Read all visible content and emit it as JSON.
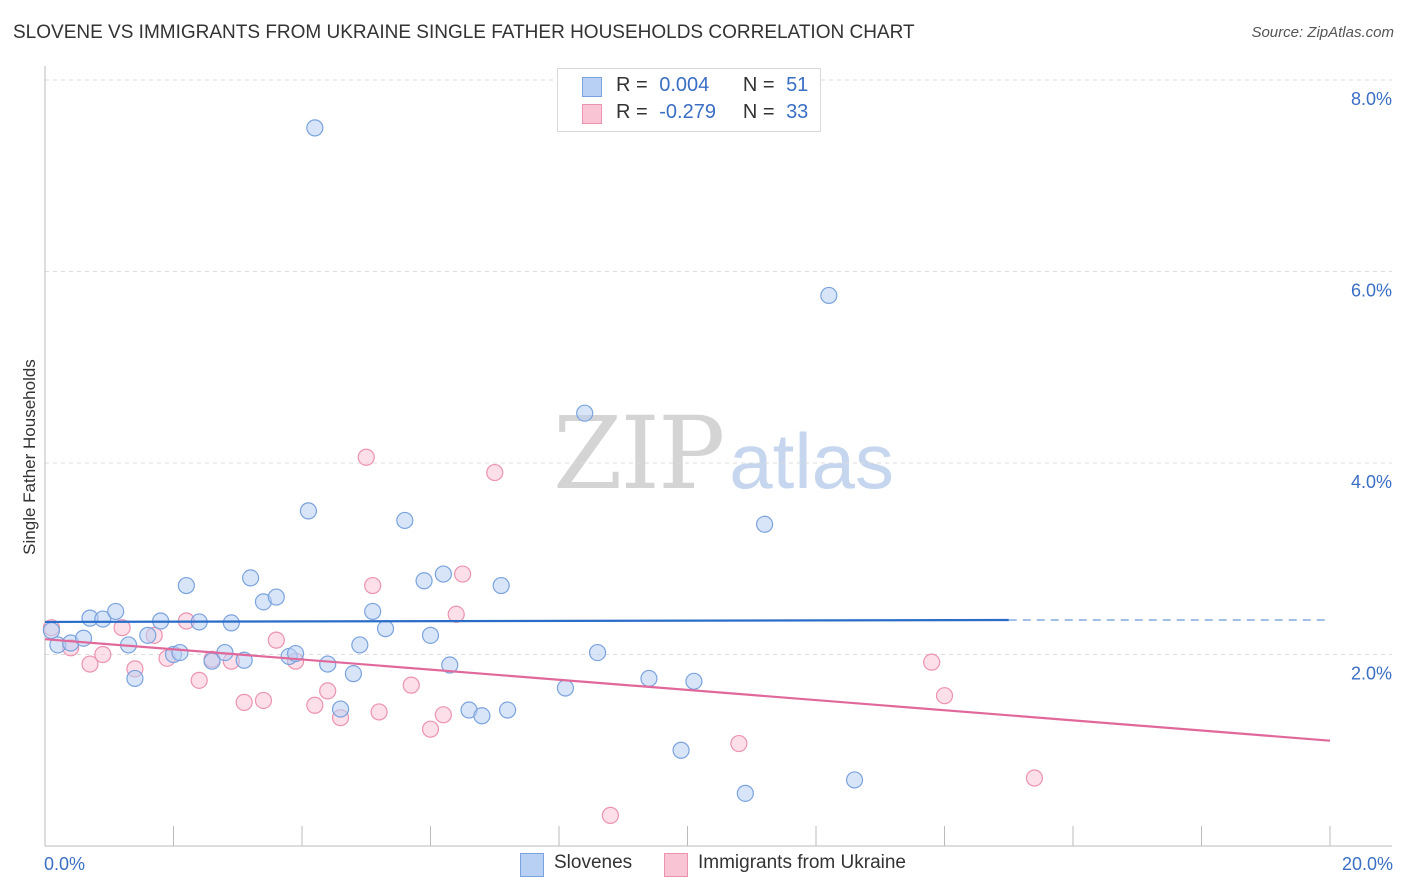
{
  "header": {
    "title": "SLOVENE VS IMMIGRANTS FROM UKRAINE SINGLE FATHER HOUSEHOLDS CORRELATION CHART",
    "source": "Source: ZipAtlas.com"
  },
  "watermark": {
    "zip": "ZIP",
    "atlas": "atlas"
  },
  "colors": {
    "blue_fill": "#b8d0f4",
    "blue_stroke": "#7aa3dd",
    "blue_line": "#2a6dc9",
    "pink_fill": "#f9c5d5",
    "pink_stroke": "#ec93b0",
    "pink_line": "#e0689a",
    "grid": "#dcdcdc",
    "accent_text": "#3b6fc4"
  },
  "legend_top": {
    "rows": [
      {
        "r_label": "R =",
        "r_value": "0.004",
        "n_label": "N =",
        "n_value": "51"
      },
      {
        "r_label": "R =",
        "r_value": "-0.279",
        "n_label": "N =",
        "n_value": "33"
      }
    ]
  },
  "legend_bottom": {
    "items": [
      {
        "label": "Slovenes"
      },
      {
        "label": "Immigrants from Ukraine"
      }
    ]
  },
  "chart_data": {
    "type": "scatter",
    "title": "SLOVENE VS IMMIGRANTS FROM UKRAINE SINGLE FATHER HOUSEHOLDS CORRELATION CHART",
    "xlabel": "",
    "ylabel": "Single Father Households",
    "xlim": [
      0,
      20
    ],
    "ylim": [
      0,
      8
    ],
    "x_tick_labels": [
      "0.0%",
      "20.0%"
    ],
    "y_ticks": [
      2,
      4,
      6,
      8
    ],
    "y_tick_labels": [
      "2.0%",
      "4.0%",
      "6.0%",
      "8.0%"
    ],
    "grid": true,
    "legend_position": "top-center",
    "series": [
      {
        "name": "Slovenes",
        "r": 0.004,
        "n": 51,
        "trend": {
          "x_start": 0,
          "y_start": 2.34,
          "x_end": 15.0,
          "y_end": 2.36,
          "dashed_until_x": 20.0
        },
        "points": [
          [
            0.1,
            2.25
          ],
          [
            0.2,
            2.1
          ],
          [
            0.4,
            2.12
          ],
          [
            0.6,
            2.17
          ],
          [
            0.7,
            2.38
          ],
          [
            0.9,
            2.37
          ],
          [
            1.1,
            2.45
          ],
          [
            1.3,
            2.1
          ],
          [
            1.4,
            1.75
          ],
          [
            1.6,
            2.2
          ],
          [
            1.8,
            2.35
          ],
          [
            2.0,
            2.0
          ],
          [
            2.1,
            2.02
          ],
          [
            2.2,
            2.72
          ],
          [
            2.4,
            2.34
          ],
          [
            2.6,
            1.93
          ],
          [
            2.8,
            2.02
          ],
          [
            2.9,
            2.33
          ],
          [
            3.1,
            1.94
          ],
          [
            3.2,
            2.8
          ],
          [
            3.4,
            2.55
          ],
          [
            3.6,
            2.6
          ],
          [
            3.8,
            1.98
          ],
          [
            3.9,
            2.01
          ],
          [
            4.1,
            3.5
          ],
          [
            4.2,
            7.5
          ],
          [
            4.4,
            1.9
          ],
          [
            4.6,
            1.43
          ],
          [
            4.8,
            1.8
          ],
          [
            4.9,
            2.1
          ],
          [
            5.1,
            2.45
          ],
          [
            5.3,
            2.27
          ],
          [
            5.6,
            3.4
          ],
          [
            5.9,
            2.77
          ],
          [
            6.0,
            2.2
          ],
          [
            6.2,
            2.84
          ],
          [
            6.3,
            1.89
          ],
          [
            6.6,
            1.42
          ],
          [
            6.8,
            1.36
          ],
          [
            7.1,
            2.72
          ],
          [
            7.2,
            1.42
          ],
          [
            8.1,
            1.65
          ],
          [
            8.4,
            4.52
          ],
          [
            8.6,
            2.02
          ],
          [
            9.4,
            1.75
          ],
          [
            9.9,
            1.0
          ],
          [
            10.1,
            1.72
          ],
          [
            10.9,
            0.55
          ],
          [
            11.2,
            3.36
          ],
          [
            12.2,
            5.75
          ],
          [
            12.6,
            0.69
          ]
        ]
      },
      {
        "name": "Immigrants from Ukraine",
        "r": -0.279,
        "n": 33,
        "trend": {
          "x_start": 0,
          "y_start": 2.16,
          "x_end": 20.0,
          "y_end": 1.1
        },
        "points": [
          [
            0.1,
            2.28
          ],
          [
            0.4,
            2.07
          ],
          [
            0.7,
            1.9
          ],
          [
            0.9,
            2.0
          ],
          [
            1.2,
            2.28
          ],
          [
            1.4,
            1.85
          ],
          [
            1.7,
            2.2
          ],
          [
            1.9,
            1.96
          ],
          [
            2.2,
            2.35
          ],
          [
            2.4,
            1.73
          ],
          [
            2.6,
            1.95
          ],
          [
            2.9,
            1.93
          ],
          [
            3.1,
            1.5
          ],
          [
            3.4,
            1.52
          ],
          [
            3.6,
            2.15
          ],
          [
            3.9,
            1.93
          ],
          [
            4.2,
            1.47
          ],
          [
            4.4,
            1.62
          ],
          [
            4.6,
            1.34
          ],
          [
            5.0,
            4.06
          ],
          [
            5.1,
            2.72
          ],
          [
            5.2,
            1.4
          ],
          [
            5.7,
            1.68
          ],
          [
            6.0,
            1.22
          ],
          [
            6.2,
            1.37
          ],
          [
            6.4,
            2.42
          ],
          [
            6.5,
            2.84
          ],
          [
            7.0,
            3.9
          ],
          [
            8.8,
            0.32
          ],
          [
            10.8,
            1.07
          ],
          [
            13.8,
            1.92
          ],
          [
            14.0,
            1.57
          ],
          [
            15.4,
            0.71
          ]
        ]
      }
    ]
  }
}
